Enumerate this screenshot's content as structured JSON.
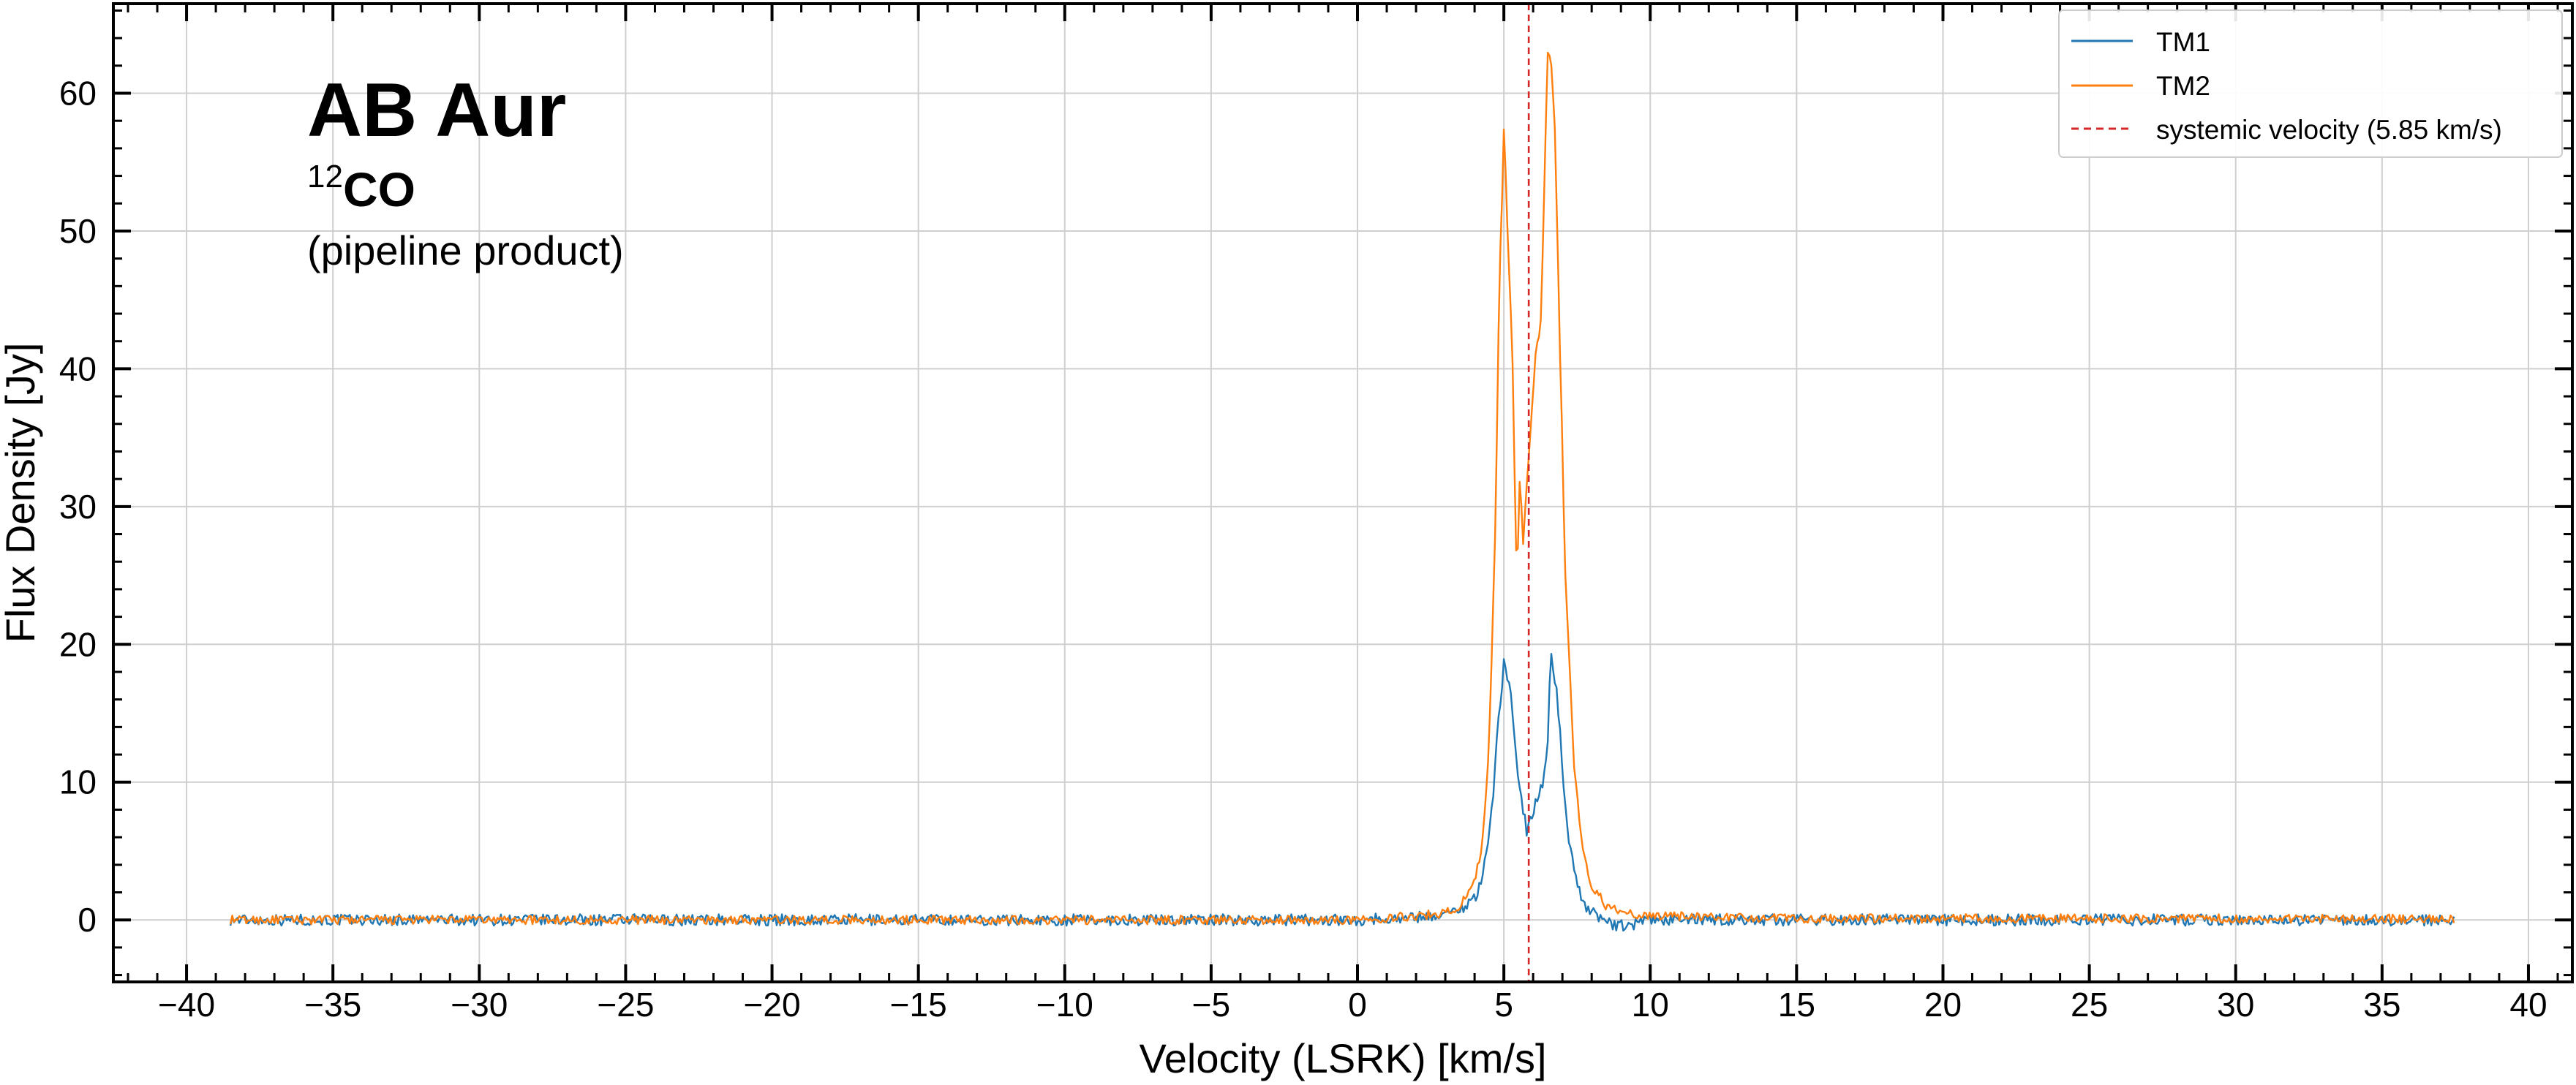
{
  "chart_data": {
    "type": "line",
    "xlabel": "Velocity (LSRK) [km/s]",
    "ylabel": "Flux Density [Jy]",
    "xlim": [
      -42.5,
      41.5
    ],
    "ylim": [
      -4.5,
      66.5
    ],
    "xticks": [
      -40,
      -35,
      -30,
      -25,
      -20,
      -15,
      -10,
      -5,
      0,
      5,
      10,
      15,
      20,
      25,
      30,
      35,
      40
    ],
    "xtick_labels": [
      "−40",
      "−35",
      "−30",
      "−25",
      "−20",
      "−15",
      "−10",
      "−5",
      "0",
      "5",
      "10",
      "15",
      "20",
      "25",
      "30",
      "35",
      "40"
    ],
    "yticks": [
      0,
      10,
      20,
      30,
      40,
      50,
      60
    ],
    "ytick_labels": [
      "0",
      "10",
      "20",
      "30",
      "40",
      "50",
      "60"
    ],
    "grid": true,
    "legend_position": "top-right",
    "annotations": {
      "title": "AB Aur",
      "molecule_sup": "12",
      "molecule": "CO",
      "note": "(pipeline product)"
    },
    "series": [
      {
        "name": "TM1",
        "color": "#1f77b4",
        "x": [
          -38.5,
          -30,
          -20,
          -10,
          -5,
          0,
          2,
          3,
          3.5,
          4.0,
          4.3,
          4.6,
          4.8,
          5.0,
          5.2,
          5.4,
          5.6,
          5.8,
          5.95,
          6.1,
          6.3,
          6.5,
          6.6,
          6.8,
          7.0,
          7.2,
          7.5,
          7.8,
          8.2,
          8.8,
          9.5,
          10,
          12,
          15,
          20,
          25,
          30,
          35,
          37.5
        ],
        "y": [
          0,
          0,
          0,
          0,
          0,
          0,
          0.2,
          0.4,
          0.8,
          1.5,
          3.5,
          8.0,
          14.0,
          18.8,
          17.0,
          12.0,
          9.0,
          6.2,
          7.5,
          8.8,
          9.5,
          13.0,
          19.3,
          17.0,
          11.0,
          6.0,
          2.5,
          1.0,
          0.3,
          -0.5,
          -0.3,
          0,
          0,
          0,
          0,
          0,
          0,
          0,
          0
        ]
      },
      {
        "name": "TM2",
        "color": "#ff7f0e",
        "x": [
          -38.5,
          -30,
          -20,
          -10,
          -5,
          0,
          2,
          3,
          3.5,
          4.0,
          4.3,
          4.5,
          4.7,
          4.85,
          5.0,
          5.1,
          5.3,
          5.45,
          5.55,
          5.65,
          5.8,
          5.95,
          6.1,
          6.25,
          6.4,
          6.5,
          6.6,
          6.75,
          6.9,
          7.1,
          7.4,
          7.7,
          8.0,
          8.5,
          9.0,
          10,
          15,
          20,
          25,
          30,
          35,
          37.5
        ],
        "y": [
          0,
          0,
          0,
          0,
          0,
          0,
          0.3,
          0.5,
          1.0,
          2.8,
          6.0,
          13.0,
          28.0,
          46.0,
          57.0,
          52.0,
          40.0,
          24.0,
          32.8,
          26.5,
          32.5,
          36.5,
          42.0,
          42.5,
          55.0,
          63.3,
          62.5,
          57.0,
          43.0,
          25.0,
          11.0,
          5.0,
          2.5,
          1.0,
          0.5,
          0.3,
          0.1,
          0.1,
          0.1,
          0.1,
          0.1,
          0
        ]
      }
    ],
    "reference_lines": [
      {
        "name": "systemic velocity (5.85 km/s)",
        "x": 5.85,
        "color": "#d62728",
        "style": "dashed"
      }
    ]
  }
}
